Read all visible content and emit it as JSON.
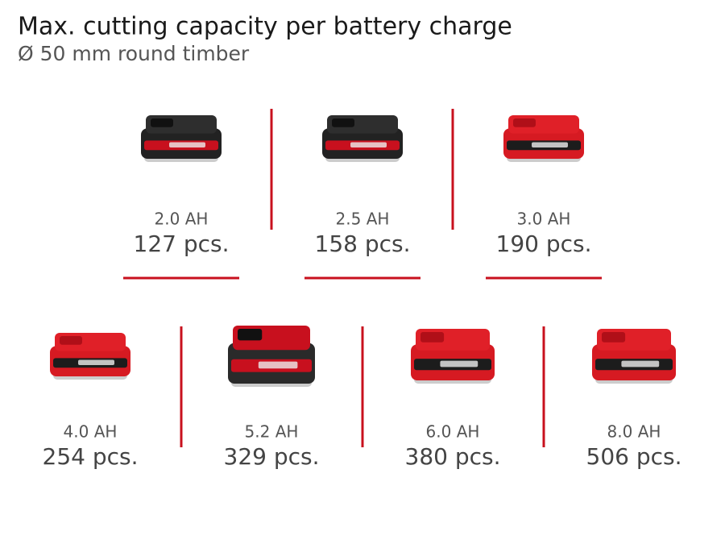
{
  "header": {
    "title": "Max. cutting capacity per battery charge",
    "subtitle": "Ø 50 mm round timber"
  },
  "items": [
    {
      "capacity": "2.0 AH",
      "count": "127 pcs."
    },
    {
      "capacity": "2.5 AH",
      "count": "158 pcs."
    },
    {
      "capacity": "3.0 AH",
      "count": "190 pcs."
    },
    {
      "capacity": "4.0 AH",
      "count": "254 pcs."
    },
    {
      "capacity": "5.2 AH",
      "count": "329 pcs."
    },
    {
      "capacity": "6.0 AH",
      "count": "380 pcs."
    },
    {
      "capacity": "8.0 AH",
      "count": "506 pcs."
    }
  ]
}
